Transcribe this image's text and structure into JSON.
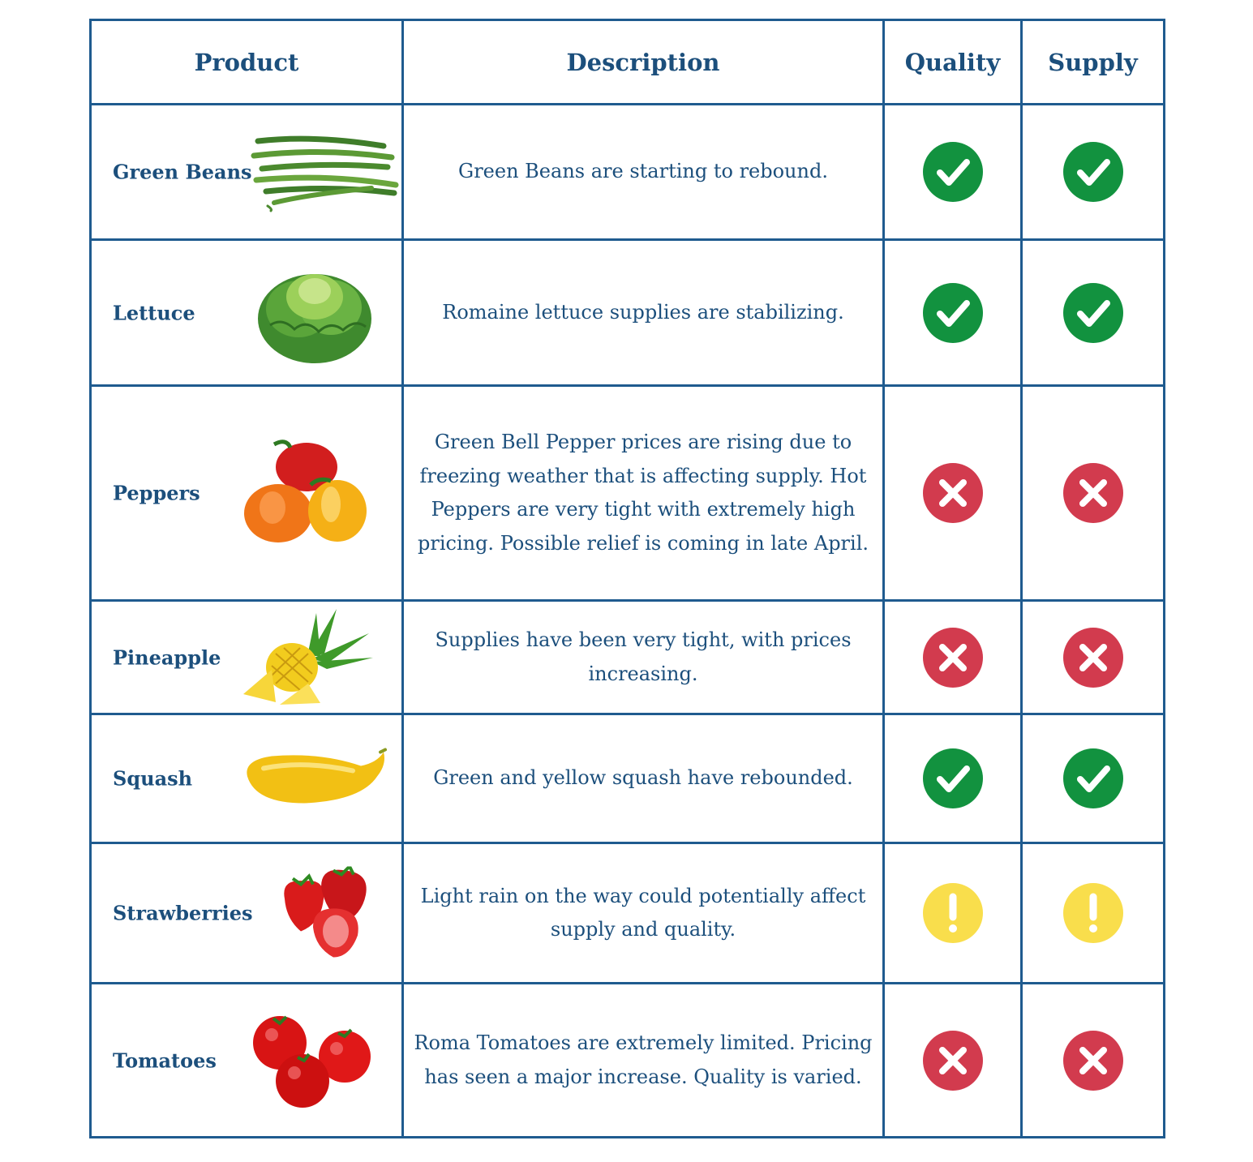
{
  "headers": {
    "product": "Product",
    "description": "Description",
    "quality": "Quality",
    "supply": "Supply"
  },
  "status_colors": {
    "good": "#12923f",
    "bad": "#d23b4e",
    "caution": "#f9de4c"
  },
  "rows": [
    {
      "product": "Green Beans",
      "image_icon": "green-beans-icon",
      "description": "Green Beans are starting to rebound.",
      "quality": "good",
      "supply": "good"
    },
    {
      "product": "Lettuce",
      "image_icon": "lettuce-icon",
      "description": "Romaine lettuce supplies are stabilizing.",
      "quality": "good",
      "supply": "good"
    },
    {
      "product": "Peppers",
      "image_icon": "peppers-icon",
      "description": "Green Bell Pepper prices are rising due to freezing weather that is affecting supply. Hot Peppers are very tight with extremely high pricing. Possible relief is coming in late April.",
      "quality": "bad",
      "supply": "bad"
    },
    {
      "product": "Pineapple",
      "image_icon": "pineapple-icon",
      "description": "Supplies have been very tight, with prices increasing.",
      "quality": "bad",
      "supply": "bad"
    },
    {
      "product": "Squash",
      "image_icon": "squash-icon",
      "description": "Green and yellow squash have rebounded.",
      "quality": "good",
      "supply": "good"
    },
    {
      "product": "Strawberries",
      "image_icon": "strawberries-icon",
      "description": "Light rain on the way could potentially affect supply and quality.",
      "quality": "caution",
      "supply": "caution"
    },
    {
      "product": "Tomatoes",
      "image_icon": "tomatoes-icon",
      "description": "Roma Tomatoes are extremely limited. Pricing has seen a major increase. Quality is varied.",
      "quality": "bad",
      "supply": "bad"
    }
  ]
}
